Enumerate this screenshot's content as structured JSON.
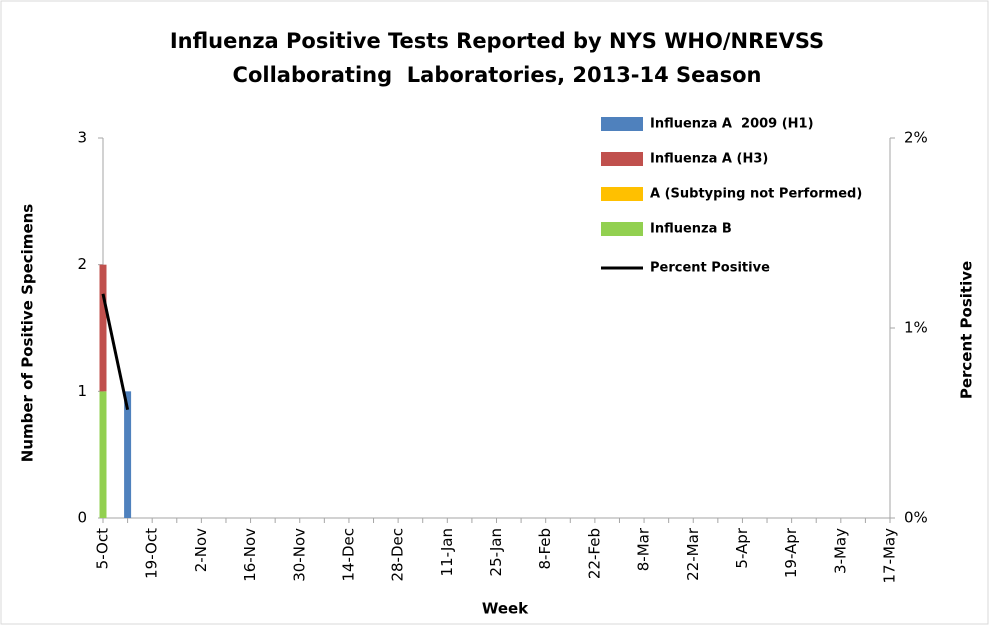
{
  "chart_data": {
    "type": "bar",
    "title": [
      "Influenza Positive Tests Reported by NYS WHO/NREVSS",
      "Collaborating  Laboratories, 2013-14 Season"
    ],
    "x_label": "Week",
    "y_label": "Number of Positive Specimens",
    "y2_label": "Percent Positive",
    "categories": [
      "5-Oct",
      null,
      "19-Oct",
      null,
      "2-Nov",
      null,
      "16-Nov",
      null,
      "30-Nov",
      null,
      "14-Dec",
      null,
      "28-Dec",
      null,
      "11-Jan",
      null,
      "25-Jan",
      null,
      "8-Feb",
      null,
      "22-Feb",
      null,
      "8-Mar",
      null,
      "22-Mar",
      null,
      "5-Apr",
      null,
      "19-Apr",
      null,
      "3-May",
      null,
      "17-May"
    ],
    "series": [
      {
        "name": "Influenza A  2009 (H1)",
        "color": "#4f81bd",
        "values": [
          0,
          1,
          null,
          null,
          null,
          null,
          null,
          null,
          null,
          null,
          null,
          null,
          null,
          null,
          null,
          null,
          null,
          null,
          null,
          null,
          null,
          null,
          null,
          null,
          null,
          null,
          null,
          null,
          null,
          null,
          null,
          null,
          null
        ]
      },
      {
        "name": "Influenza A (H3)",
        "color": "#c0504d",
        "values": [
          1,
          0,
          null,
          null,
          null,
          null,
          null,
          null,
          null,
          null,
          null,
          null,
          null,
          null,
          null,
          null,
          null,
          null,
          null,
          null,
          null,
          null,
          null,
          null,
          null,
          null,
          null,
          null,
          null,
          null,
          null,
          null,
          null
        ]
      },
      {
        "name": "A (Subtyping not Performed)",
        "color": "#ffc000",
        "values": [
          0,
          0,
          null,
          null,
          null,
          null,
          null,
          null,
          null,
          null,
          null,
          null,
          null,
          null,
          null,
          null,
          null,
          null,
          null,
          null,
          null,
          null,
          null,
          null,
          null,
          null,
          null,
          null,
          null,
          null,
          null,
          null,
          null
        ]
      },
      {
        "name": "Influenza B",
        "color": "#92d050",
        "values": [
          1,
          0,
          null,
          null,
          null,
          null,
          null,
          null,
          null,
          null,
          null,
          null,
          null,
          null,
          null,
          null,
          null,
          null,
          null,
          null,
          null,
          null,
          null,
          null,
          null,
          null,
          null,
          null,
          null,
          null,
          null,
          null,
          null
        ]
      },
      {
        "name": "Percent Positive",
        "color": "#000000",
        "type": "line",
        "axis": "y2",
        "values": [
          1.18,
          0.57,
          null,
          null,
          null,
          null,
          null,
          null,
          null,
          null,
          null,
          null,
          null,
          null,
          null,
          null,
          null,
          null,
          null,
          null,
          null,
          null,
          null,
          null,
          null,
          null,
          null,
          null,
          null,
          null,
          null,
          null,
          null
        ]
      }
    ],
    "ylim": [
      0,
      3
    ],
    "yticks": [
      0,
      1,
      2,
      3
    ],
    "y2lim": [
      0,
      2
    ],
    "y2ticks": [
      {
        "value": 0,
        "label": "0%"
      },
      {
        "value": 1,
        "label": "1%"
      },
      {
        "value": 2,
        "label": "2%"
      }
    ],
    "stacked": true,
    "grid": false,
    "legend": "upper right"
  }
}
